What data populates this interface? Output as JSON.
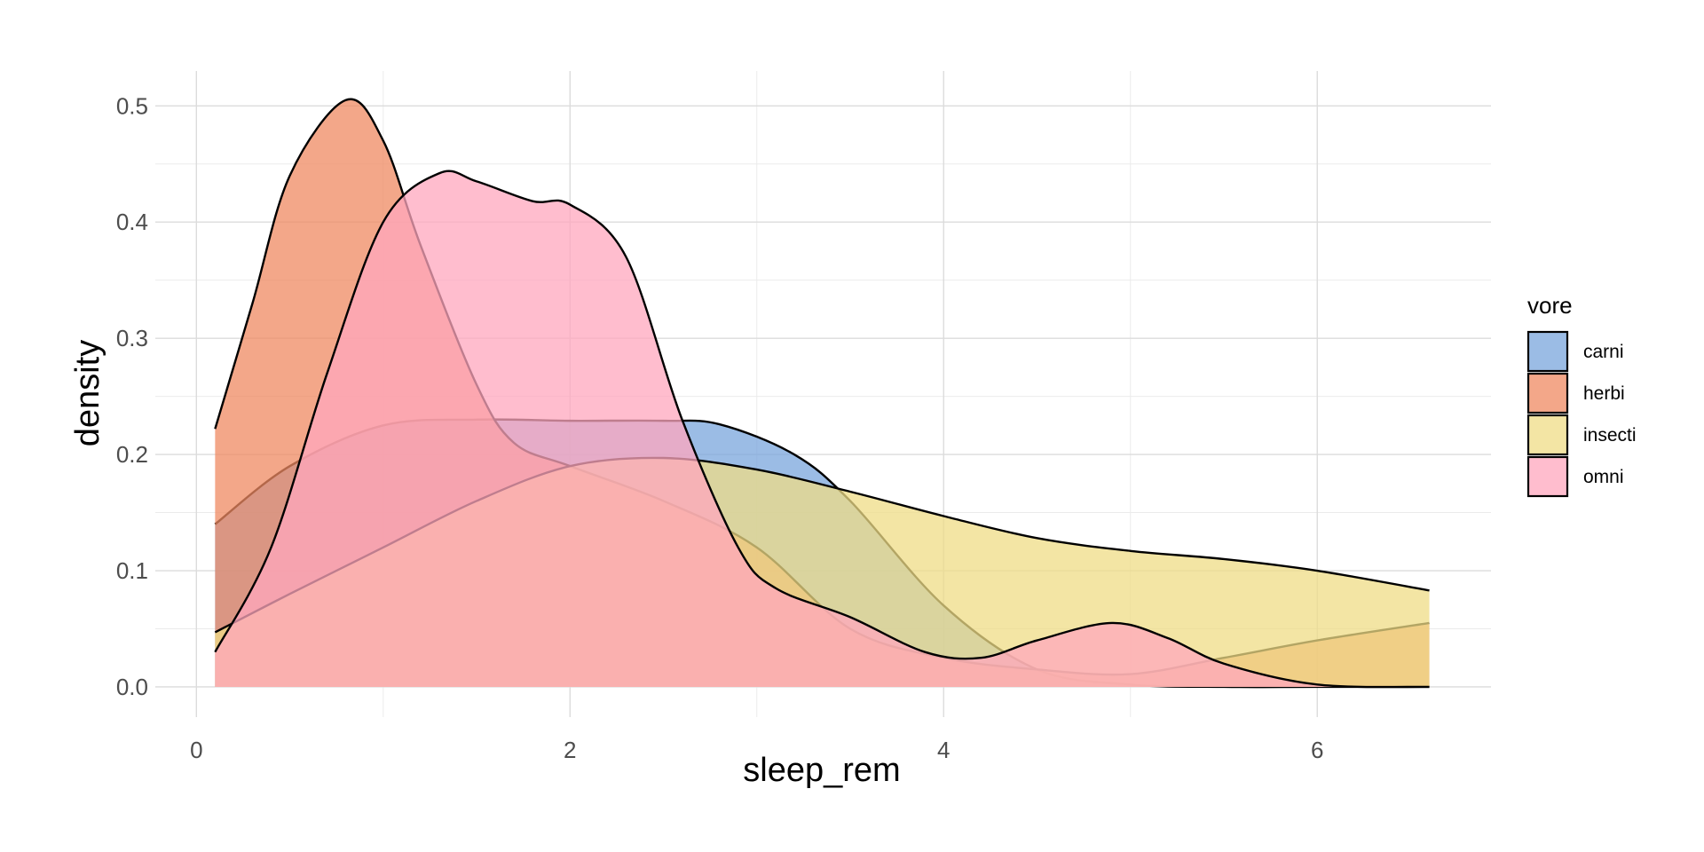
{
  "chart_data": {
    "type": "area",
    "subtype": "density",
    "title": "",
    "xlabel": "sleep_rem",
    "ylabel": "density",
    "xlim": [
      -0.22,
      6.93
    ],
    "ylim": [
      -0.026,
      0.53
    ],
    "x_ticks": [
      0,
      2,
      4,
      6
    ],
    "y_ticks": [
      0.0,
      0.1,
      0.2,
      0.3,
      0.4,
      0.5
    ],
    "y_tick_labels": [
      "0.0",
      "0.1",
      "0.2",
      "0.3",
      "0.4",
      "0.5"
    ],
    "grid": true,
    "legend": {
      "title": "vore",
      "position": "right"
    },
    "fill_opacity": 0.75,
    "series": [
      {
        "name": "carni",
        "color": "#7AA6DC",
        "x": [
          0.1,
          0.5,
          1.0,
          1.5,
          2.0,
          2.5,
          2.8,
          3.2,
          3.5,
          4.0,
          4.5,
          5.0,
          5.5,
          6.0,
          6.6
        ],
        "y": [
          0.14,
          0.19,
          0.225,
          0.23,
          0.229,
          0.229,
          0.226,
          0.2,
          0.16,
          0.07,
          0.015,
          0.002,
          0.0,
          0.0,
          0.0
        ]
      },
      {
        "name": "herbi",
        "color": "#EF8A62",
        "x": [
          0.1,
          0.3,
          0.5,
          0.8,
          1.0,
          1.2,
          1.5,
          1.7,
          2.0,
          2.5,
          3.0,
          3.5,
          4.0,
          4.5,
          5.0,
          5.5,
          6.0,
          6.6
        ],
        "y": [
          0.222,
          0.33,
          0.44,
          0.505,
          0.47,
          0.38,
          0.26,
          0.21,
          0.19,
          0.16,
          0.12,
          0.05,
          0.025,
          0.015,
          0.011,
          0.025,
          0.04,
          0.055
        ]
      },
      {
        "name": "insecti",
        "color": "#EFDC86",
        "x": [
          0.1,
          0.5,
          1.0,
          1.5,
          2.0,
          2.5,
          3.0,
          3.5,
          4.0,
          4.5,
          5.0,
          5.5,
          6.0,
          6.6
        ],
        "y": [
          0.047,
          0.08,
          0.12,
          0.16,
          0.19,
          0.197,
          0.187,
          0.168,
          0.147,
          0.128,
          0.117,
          0.11,
          0.1,
          0.083
        ]
      },
      {
        "name": "omni",
        "color": "#FFA7BE",
        "x": [
          0.1,
          0.4,
          0.7,
          1.0,
          1.3,
          1.5,
          1.8,
          2.0,
          2.3,
          2.6,
          2.9,
          3.1,
          3.5,
          3.9,
          4.2,
          4.5,
          4.9,
          5.2,
          5.5,
          6.0,
          6.6
        ],
        "y": [
          0.03,
          0.12,
          0.27,
          0.4,
          0.442,
          0.435,
          0.418,
          0.415,
          0.37,
          0.23,
          0.12,
          0.085,
          0.06,
          0.03,
          0.025,
          0.04,
          0.055,
          0.042,
          0.02,
          0.002,
          0.0
        ]
      }
    ]
  }
}
